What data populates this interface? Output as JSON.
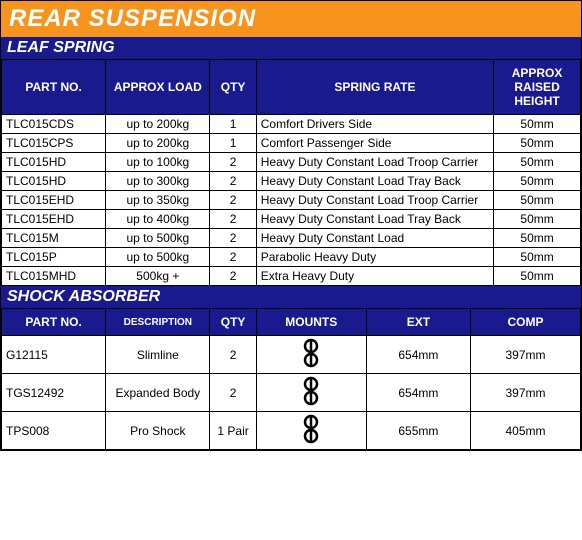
{
  "title": "REAR SUSPENSION",
  "colors": {
    "title_bg": "#f7941d",
    "section_bg": "#1a1a8f",
    "header_bg": "#1a1a8f",
    "text_white": "#ffffff",
    "border": "#000000"
  },
  "leaf_spring": {
    "section_title": "LEAF SPRING",
    "columns": {
      "part_no": "PART NO.",
      "load": "APPROX LOAD",
      "qty": "QTY",
      "spring_rate": "SPRING RATE",
      "height": "APPROX RAISED HEIGHT"
    },
    "col_widths": [
      "18%",
      "18%",
      "8%",
      "41%",
      "15%"
    ],
    "rows": [
      {
        "part_no": "TLC015CDS",
        "load": "up to 200kg",
        "qty": "1",
        "rate": "Comfort Drivers Side",
        "height": "50mm"
      },
      {
        "part_no": "TLC015CPS",
        "load": "up to 200kg",
        "qty": "1",
        "rate": "Comfort Passenger Side",
        "height": "50mm"
      },
      {
        "part_no": "TLC015HD",
        "load": "up to 100kg",
        "qty": "2",
        "rate": "Heavy Duty Constant Load Troop Carrier",
        "height": "50mm"
      },
      {
        "part_no": "TLC015HD",
        "load": "up to 300kg",
        "qty": "2",
        "rate": "Heavy Duty Constant Load Tray Back",
        "height": "50mm"
      },
      {
        "part_no": "TLC015EHD",
        "load": "up to 350kg",
        "qty": "2",
        "rate": "Heavy Duty Constant Load Troop Carrier",
        "height": "50mm"
      },
      {
        "part_no": "TLC015EHD",
        "load": "up to 400kg",
        "qty": "2",
        "rate": "Heavy Duty Constant Load Tray Back",
        "height": "50mm"
      },
      {
        "part_no": "TLC015M",
        "load": "up to 500kg",
        "qty": "2",
        "rate": "Heavy Duty Constant Load",
        "height": "50mm"
      },
      {
        "part_no": "TLC015P",
        "load": "up to 500kg",
        "qty": "2",
        "rate": "Parabolic Heavy Duty",
        "height": "50mm"
      },
      {
        "part_no": "TLC015MHD",
        "load": "500kg +",
        "qty": "2",
        "rate": "Extra Heavy Duty",
        "height": "50mm"
      }
    ]
  },
  "shock_absorber": {
    "section_title": "SHOCK ABSORBER",
    "columns": {
      "part_no": "PART NO.",
      "desc": "DESCRIPTION",
      "qty": "QTY",
      "mounts": "MOUNTS",
      "ext": "EXT",
      "comp": "COMP"
    },
    "col_widths": [
      "18%",
      "18%",
      "8%",
      "19%",
      "18%",
      "19%"
    ],
    "rows": [
      {
        "part_no": "G12115",
        "desc": "Slimline",
        "qty": "2",
        "ext": "654mm",
        "comp": "397mm"
      },
      {
        "part_no": "TGS12492",
        "desc": "Expanded Body",
        "qty": "2",
        "ext": "654mm",
        "comp": "397mm"
      },
      {
        "part_no": "TPS008",
        "desc": "Pro Shock",
        "qty": "1 Pair",
        "ext": "655mm",
        "comp": "405mm"
      }
    ]
  }
}
